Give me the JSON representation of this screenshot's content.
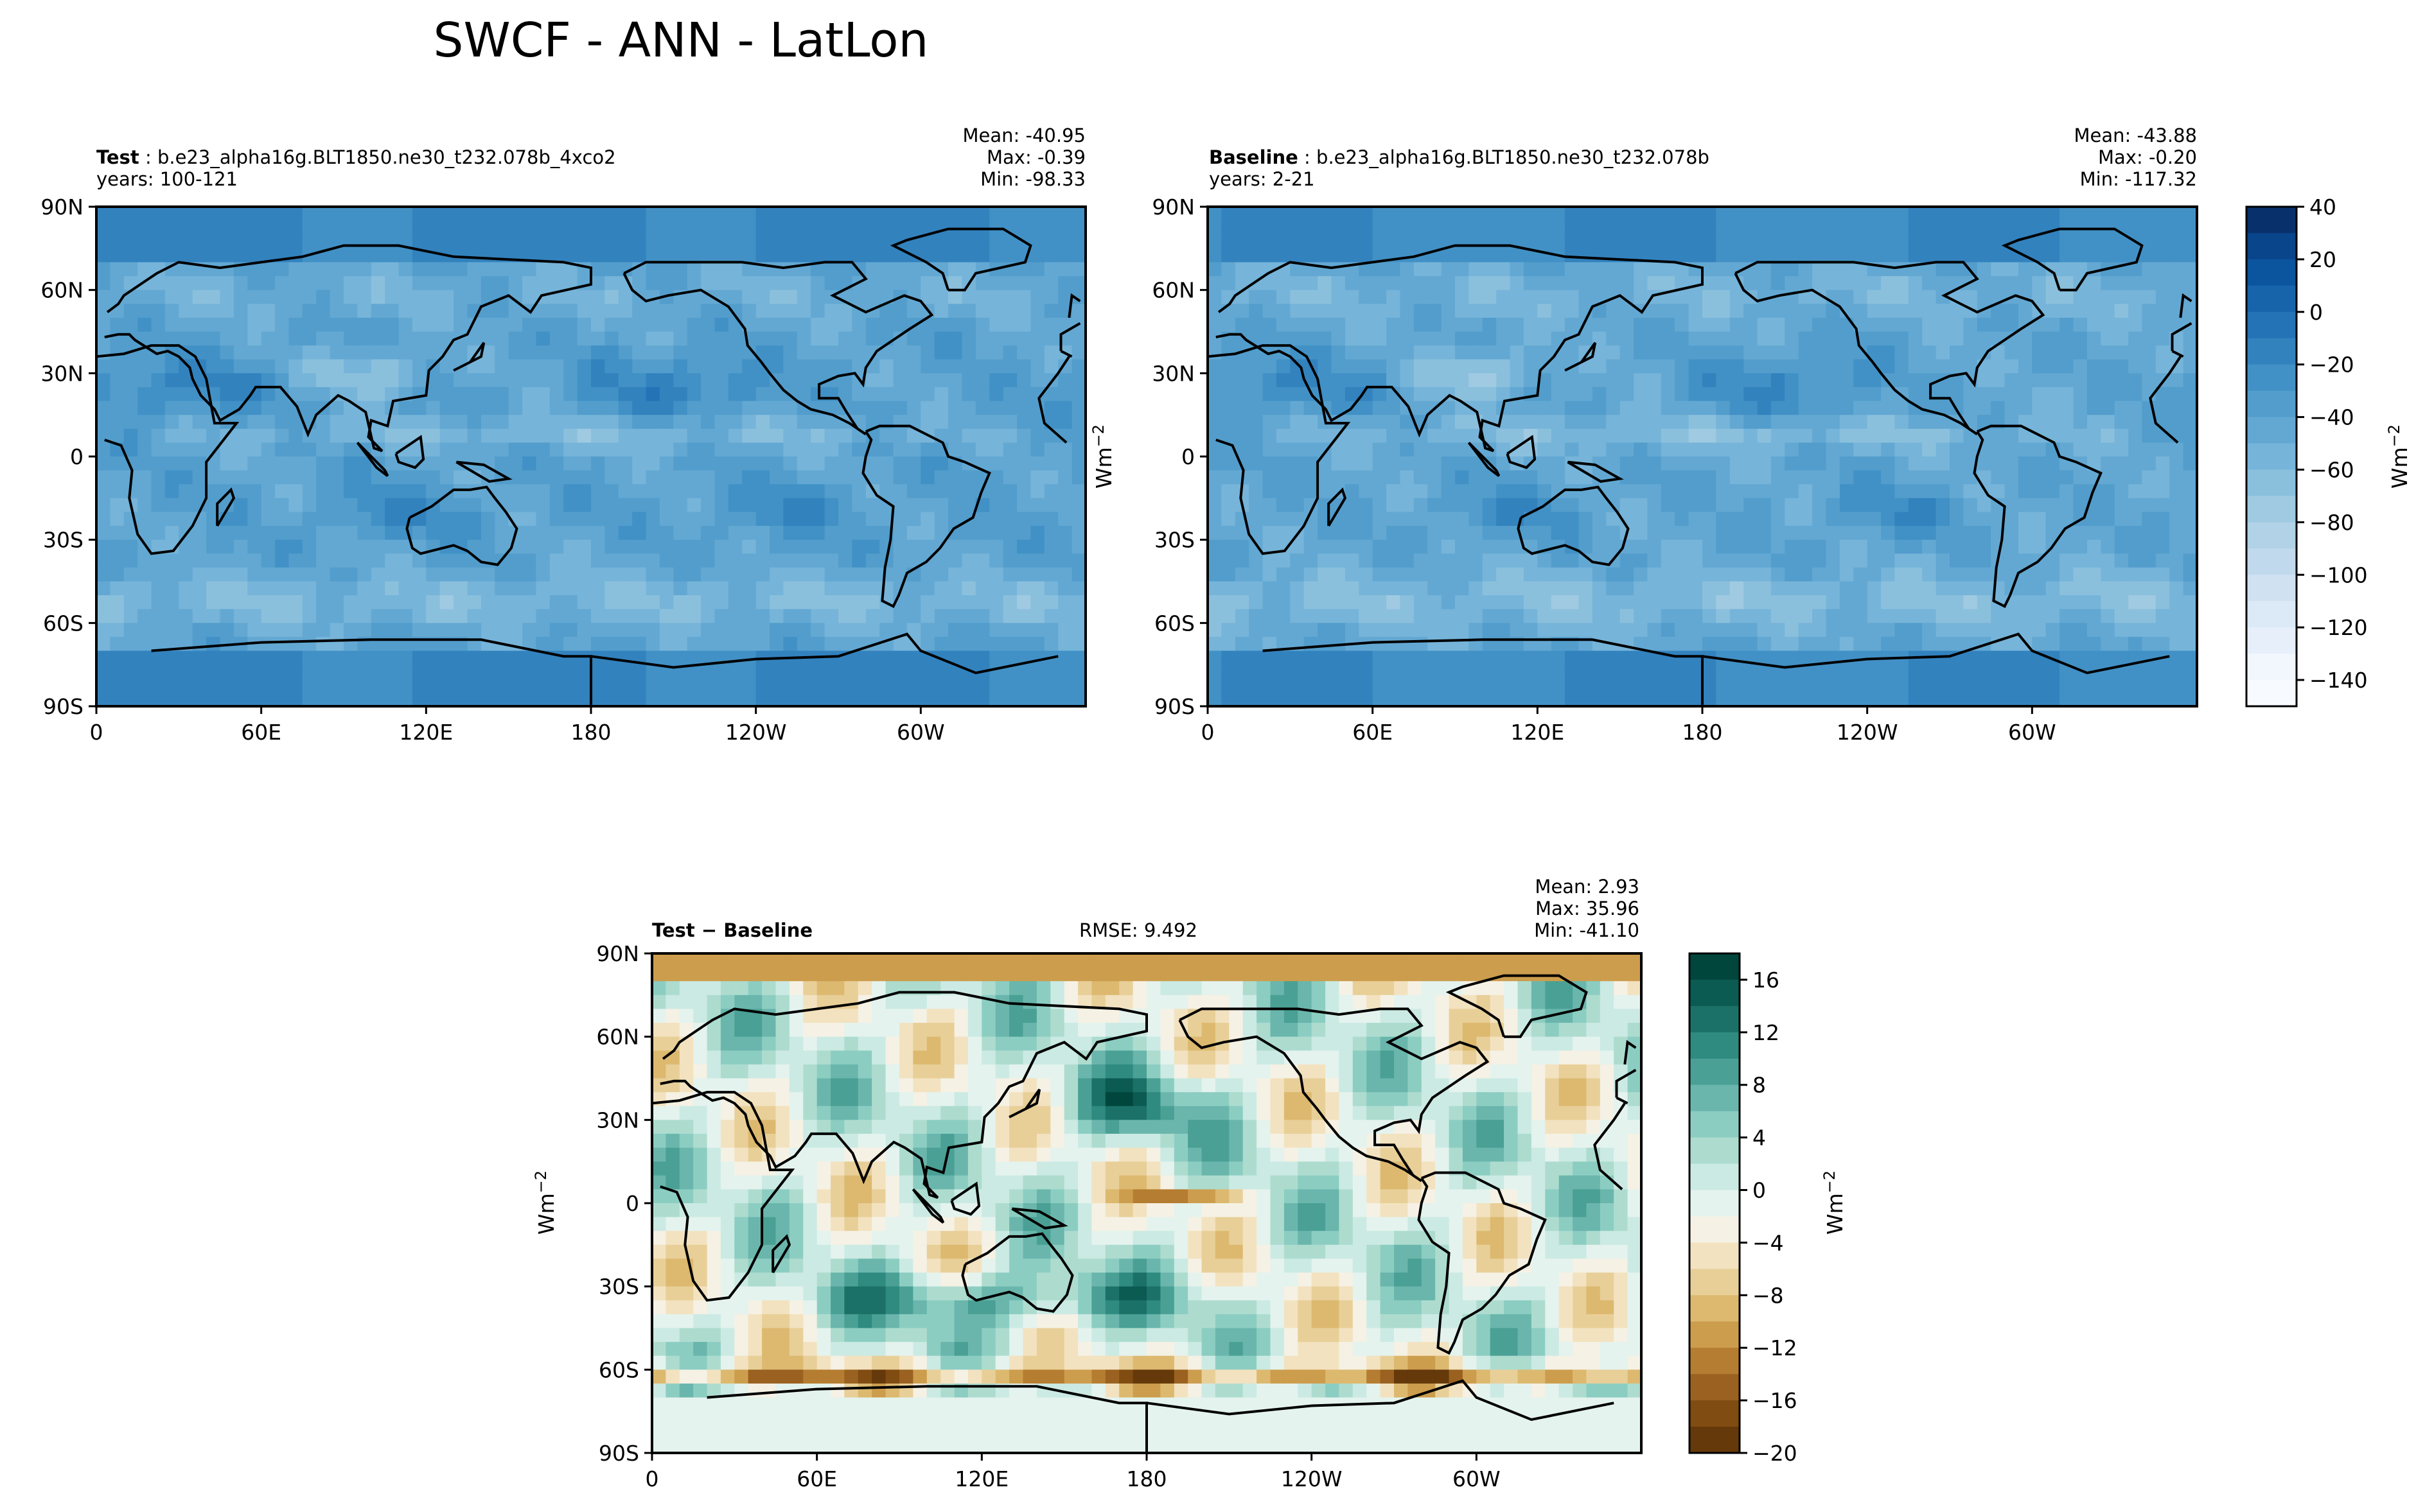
{
  "page_title": "SWCF - ANN - LatLon",
  "unit_label": "Wm",
  "unit_exponent": "−2",
  "chart_data": [
    {
      "type": "heatmap",
      "label": "Test",
      "case": "b.e23_alpha16g.BLT1850.ne30_t232.078b_4xco2",
      "years": "years: 100-121",
      "stats": {
        "mean": "Mean: -40.95",
        "max": "Max: -0.39",
        "min": "Min: -98.33"
      },
      "x_ticks": [
        "0",
        "60E",
        "120E",
        "180",
        "120W",
        "60W"
      ],
      "y_ticks": [
        "90N",
        "60N",
        "30N",
        "0",
        "30S",
        "60S",
        "90S"
      ],
      "xlim": [
        0,
        360
      ],
      "ylim": [
        -90,
        90
      ],
      "colormap": "Blues_r",
      "clim": [
        -150,
        40
      ]
    },
    {
      "type": "heatmap",
      "label": "Baseline",
      "case": "b.e23_alpha16g.BLT1850.ne30_t232.078b",
      "years": "years: 2-21",
      "stats": {
        "mean": "Mean: -43.88",
        "max": "Max: -0.20",
        "min": "Min: -117.32"
      },
      "x_ticks": [
        "0",
        "60E",
        "120E",
        "180",
        "120W",
        "60W"
      ],
      "y_ticks": [
        "90N",
        "60N",
        "30N",
        "0",
        "30S",
        "60S",
        "90S"
      ],
      "xlim": [
        0,
        360
      ],
      "ylim": [
        -90,
        90
      ],
      "colormap": "Blues_r",
      "clim": [
        -150,
        40
      ]
    },
    {
      "type": "heatmap",
      "label": "Test − Baseline",
      "rmse": "RMSE: 9.492",
      "stats": {
        "mean": "Mean:  2.93",
        "max": "Max: 35.96",
        "min": "Min: -41.10"
      },
      "x_ticks": [
        "0",
        "60E",
        "120E",
        "180",
        "120W",
        "60W"
      ],
      "y_ticks": [
        "90N",
        "60N",
        "30N",
        "0",
        "30S",
        "60S",
        "90S"
      ],
      "xlim": [
        0,
        360
      ],
      "ylim": [
        -90,
        90
      ],
      "colormap": "BrBG",
      "clim": [
        -20,
        18
      ]
    }
  ],
  "colorbars": [
    {
      "ticks": [
        "40",
        "20",
        "0",
        "−20",
        "−40",
        "−60",
        "−80",
        "−100",
        "−120",
        "−140"
      ],
      "values": [
        40,
        20,
        0,
        -20,
        -40,
        -60,
        -80,
        -100,
        -120,
        -140
      ],
      "range": [
        -150,
        40
      ],
      "colors": [
        "#08306b",
        "#08458a",
        "#0b559f",
        "#1764ab",
        "#2373b6",
        "#3282be",
        "#4191c6",
        "#529dcc",
        "#63a8d3",
        "#76b4d9",
        "#8bc0dd",
        "#9fcae1",
        "#b1d2e7",
        "#c1d9ed",
        "#d0e2f2",
        "#dce9f6",
        "#e7f0fa",
        "#f1f7fd",
        "#f7fbff"
      ]
    },
    {
      "ticks": [
        "16",
        "12",
        "8",
        "4",
        "0",
        "−4",
        "−8",
        "−12",
        "−16",
        "−20"
      ],
      "values": [
        16,
        12,
        8,
        4,
        0,
        -4,
        -8,
        -12,
        -16,
        -20
      ],
      "range": [
        -20,
        18
      ],
      "colors": [
        "#01463d",
        "#0b5b53",
        "#1b7167",
        "#2f8a80",
        "#4aa095",
        "#6ab6ac",
        "#8ccdc2",
        "#addccf",
        "#cbeae3",
        "#e4f3ee",
        "#f5f1e4",
        "#f3e2bf",
        "#e8cf98",
        "#dcb96f",
        "#cc9d4d",
        "#b57d31",
        "#9a6120",
        "#804c12",
        "#65390a"
      ]
    }
  ]
}
